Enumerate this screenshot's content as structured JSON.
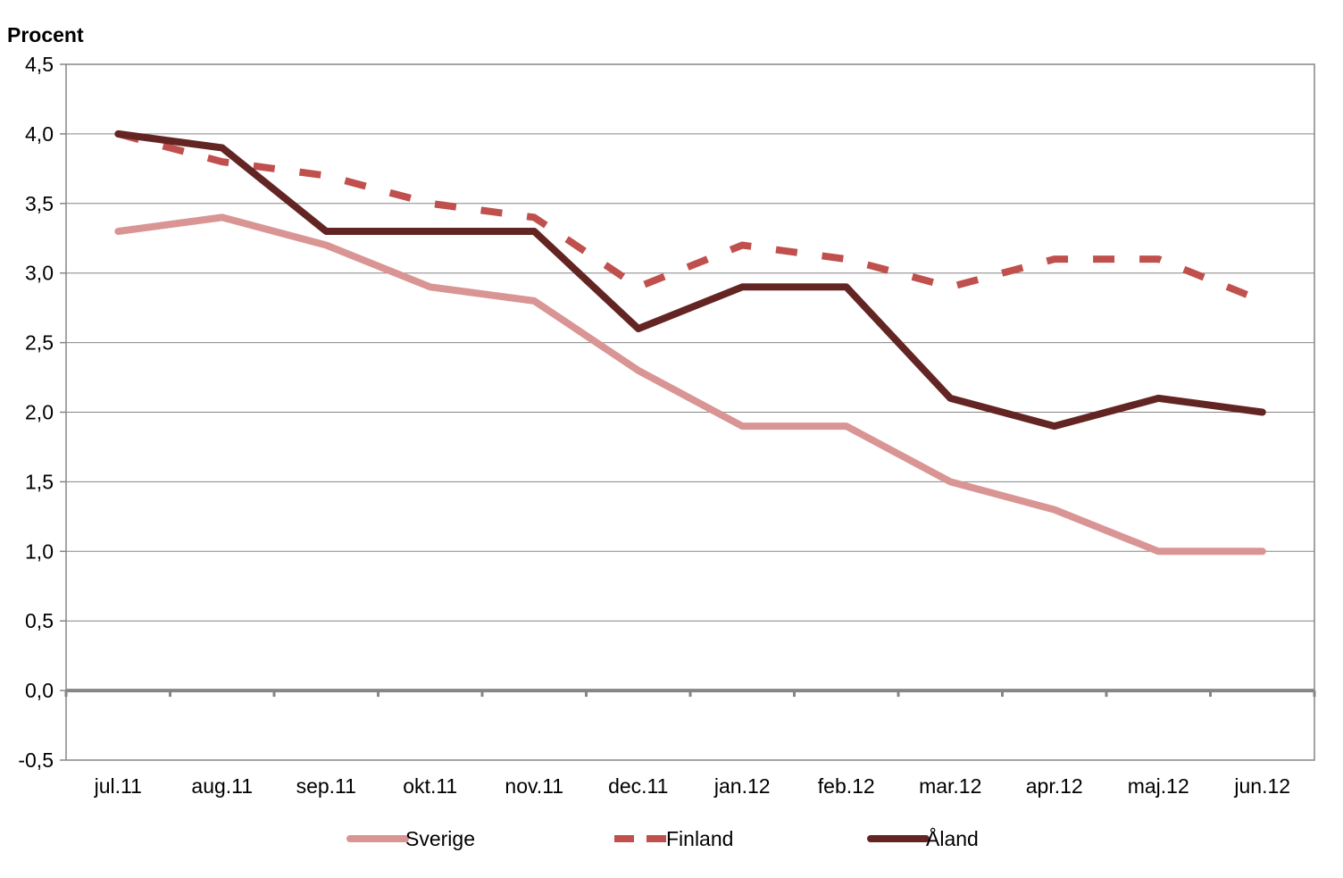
{
  "chart_data": {
    "type": "line",
    "title": "",
    "xlabel": "",
    "ylabel": "Procent",
    "ylim": [
      -0.5,
      4.5
    ],
    "ytick_step": 0.5,
    "ytick_labels": [
      "-0,5",
      "0,0",
      "0,5",
      "1,0",
      "1,5",
      "2,0",
      "2,5",
      "3,0",
      "3,5",
      "4,0",
      "4,5"
    ],
    "grid": true,
    "legend_position": "bottom",
    "categories": [
      "jul.11",
      "aug.11",
      "sep.11",
      "okt.11",
      "nov.11",
      "dec.11",
      "jan.12",
      "feb.12",
      "mar.12",
      "apr.12",
      "maj.12",
      "jun.12"
    ],
    "series": [
      {
        "name": "Sverige",
        "color": "#D99594",
        "dash": "solid",
        "values": [
          3.3,
          3.4,
          3.2,
          2.9,
          2.8,
          2.3,
          1.9,
          1.9,
          1.5,
          1.3,
          1.0,
          1.0
        ]
      },
      {
        "name": "Finland",
        "color": "#C0504D",
        "dash": "dashed",
        "values": [
          4.0,
          3.8,
          3.7,
          3.5,
          3.4,
          2.9,
          3.2,
          3.1,
          2.9,
          3.1,
          3.1,
          2.8
        ]
      },
      {
        "name": "Åland",
        "color": "#632523",
        "dash": "solid",
        "values": [
          4.0,
          3.9,
          3.3,
          3.3,
          3.3,
          2.6,
          2.9,
          2.9,
          2.1,
          1.9,
          2.1,
          2.0
        ]
      }
    ]
  }
}
